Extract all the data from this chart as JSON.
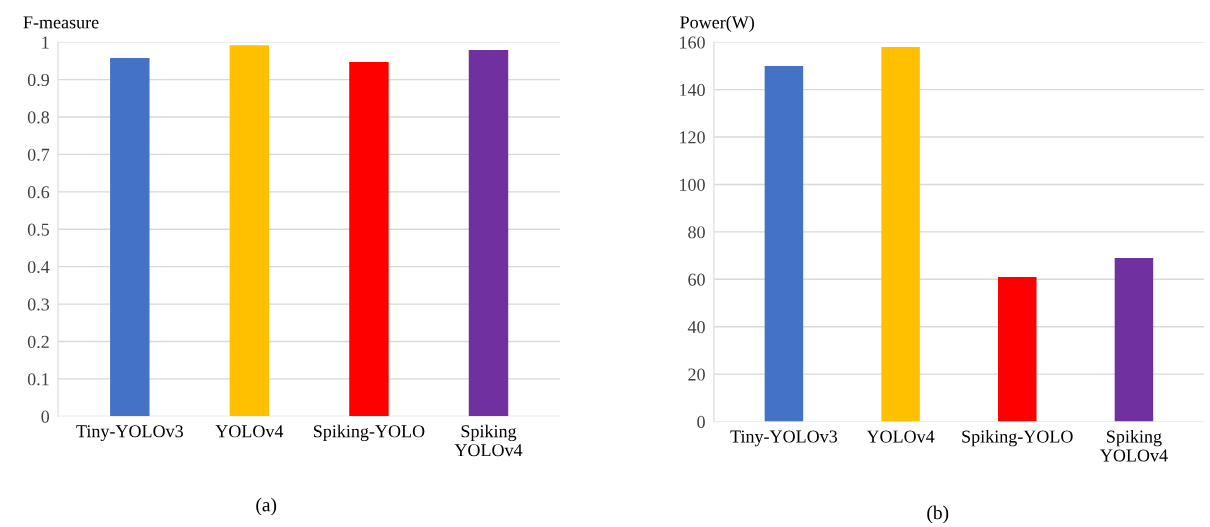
{
  "chart_data": [
    {
      "type": "bar",
      "ylabel": "F-measure",
      "categories": [
        "Tiny-YOLOv3",
        "YOLOv4",
        "Spiking-YOLO",
        "Spiking\nYOLOv4"
      ],
      "values": [
        0.958,
        0.992,
        0.947,
        0.979
      ],
      "colors": [
        "#4472c4",
        "#ffc000",
        "#ff0000",
        "#7030a0"
      ],
      "ylim": [
        0,
        1.0
      ],
      "yticks": [
        0,
        0.1,
        0.2,
        0.3,
        0.4,
        0.5,
        0.6,
        0.7,
        0.8,
        0.9,
        1
      ],
      "grid": "y",
      "annotations": [
        "(a)"
      ]
    },
    {
      "type": "bar",
      "ylabel": "Power(W)",
      "categories": [
        "Tiny-YOLOv3",
        "YOLOv4",
        "Spiking-YOLO",
        "Spiking\nYOLOv4"
      ],
      "values": [
        150,
        158,
        61,
        69
      ],
      "colors": [
        "#4472c4",
        "#ffc000",
        "#ff0000",
        "#7030a0"
      ],
      "ylim": [
        0,
        160
      ],
      "yticks": [
        0,
        20,
        40,
        60,
        80,
        100,
        120,
        140,
        160
      ],
      "grid": "y",
      "annotations": [
        "(b)"
      ]
    }
  ]
}
